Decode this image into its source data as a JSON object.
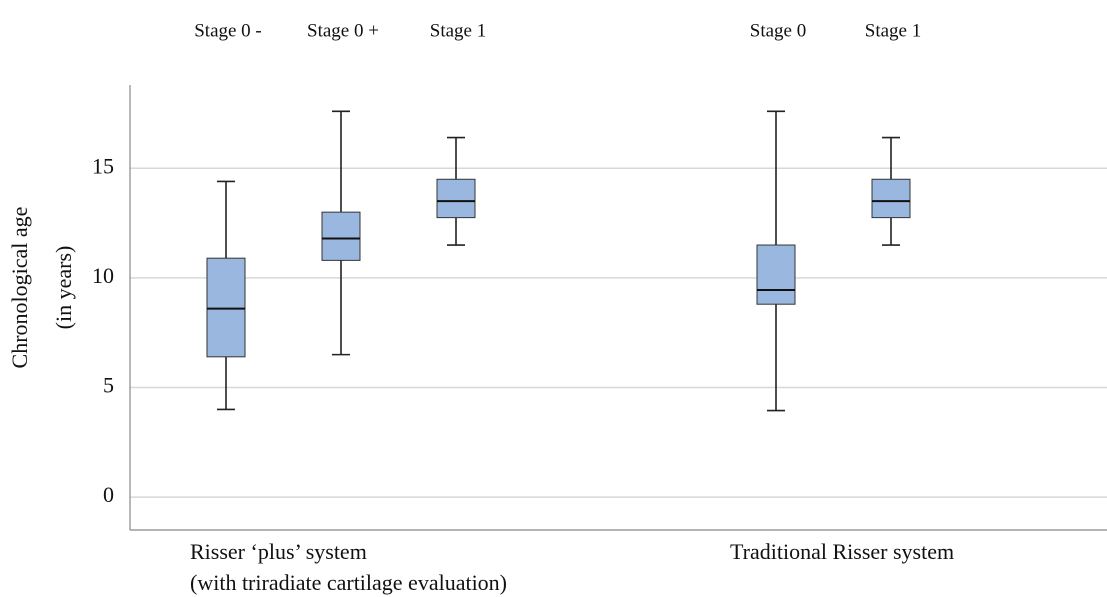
{
  "chart_data": {
    "type": "boxplot",
    "ylabel": [
      "Chronological age",
      "(in years)"
    ],
    "ylim": [
      -1.5,
      18.8
    ],
    "yticks": [
      0,
      5,
      10,
      15
    ],
    "grid": true,
    "color": "#9ab7e0",
    "groups": [
      {
        "label": [
          "Risser ‘plus’ system",
          "(with triradiate cartilage evaluation)"
        ],
        "boxes": [
          {
            "name": "Stage 0 -",
            "min": 4.0,
            "q1": 6.4,
            "median": 8.6,
            "q3": 10.9,
            "max": 14.4
          },
          {
            "name": "Stage 0 +",
            "min": 6.5,
            "q1": 10.8,
            "median": 11.8,
            "q3": 13.0,
            "max": 17.6
          },
          {
            "name": "Stage 1",
            "min": 11.5,
            "q1": 12.75,
            "median": 13.5,
            "q3": 14.5,
            "max": 16.4
          }
        ]
      },
      {
        "label": [
          "Traditional Risser system"
        ],
        "boxes": [
          {
            "name": "Stage 0",
            "min": 3.95,
            "q1": 8.8,
            "median": 9.45,
            "q3": 11.5,
            "max": 17.6
          },
          {
            "name": "Stage 1",
            "min": 11.5,
            "q1": 12.75,
            "median": 13.5,
            "q3": 14.5,
            "max": 16.4
          }
        ]
      }
    ]
  }
}
